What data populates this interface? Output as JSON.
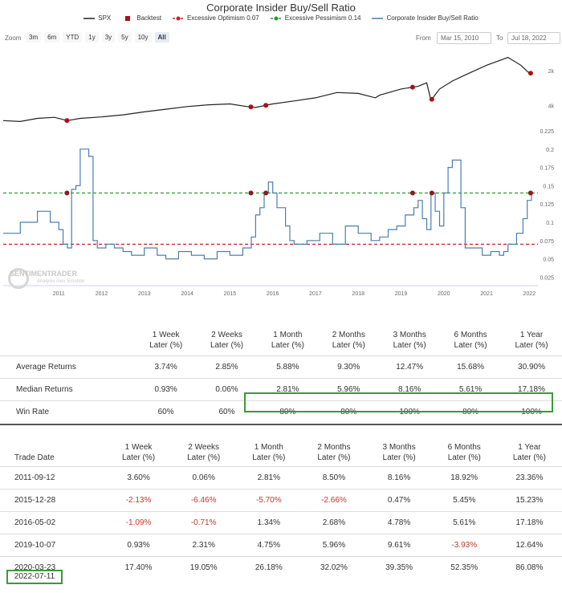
{
  "title": "Corporate Insider Buy/Sell Ratio",
  "legend": [
    {
      "name": "SPX",
      "color": "#222222",
      "symbol": "line"
    },
    {
      "name": "Backtest",
      "color": "#aa1111",
      "symbol": "square"
    },
    {
      "name": "Excessive Optimism 0.07",
      "color": "#cc2222",
      "symbol": "dash"
    },
    {
      "name": "Excessive Pessimism 0.14",
      "color": "#2a9a2a",
      "symbol": "dash"
    },
    {
      "name": "Corporate Insider Buy/Sell Ratio",
      "color": "#4a7fb0",
      "symbol": "line"
    }
  ],
  "toolbar": {
    "zoom_label": "Zoom",
    "zoom_buttons": [
      "3m",
      "6m",
      "YTD",
      "1y",
      "3y",
      "5y",
      "10y",
      "All"
    ],
    "active_zoom": "All",
    "from_label": "From",
    "from_value": "Mar 15, 2010",
    "to_label": "To",
    "to_value": "Jul 18, 2022"
  },
  "watermark": {
    "name": "SENTIMENTRADER",
    "tagline": "Analysis over Emotion"
  },
  "chart_data": [
    {
      "type": "line",
      "name": "SPX",
      "y_ticks": [
        "2k",
        "4k"
      ],
      "x": [
        2010.2,
        2010.6,
        2011.0,
        2011.4,
        2011.7,
        2012.0,
        2012.5,
        2013.0,
        2013.5,
        2014.0,
        2014.5,
        2015.0,
        2015.5,
        2015.9,
        2016.1,
        2016.5,
        2017.0,
        2017.5,
        2018.0,
        2018.5,
        2018.9,
        2019.0,
        2019.5,
        2019.9,
        2020.1,
        2020.2,
        2020.4,
        2020.7,
        2021.0,
        2021.5,
        2022.0,
        2022.3,
        2022.5
      ],
      "values": [
        1150,
        1100,
        1280,
        1340,
        1150,
        1280,
        1360,
        1480,
        1650,
        1800,
        1950,
        2050,
        2100,
        1950,
        1900,
        2100,
        2270,
        2450,
        2750,
        2700,
        2450,
        2600,
        2950,
        3100,
        3300,
        2300,
        2950,
        3400,
        3750,
        4300,
        4750,
        4300,
        3850
      ]
    },
    {
      "type": "line",
      "name": "Corporate Insider Buy/Sell Ratio",
      "xlabels": [
        "2011",
        "2012",
        "2013",
        "2014",
        "2015",
        "2016",
        "2017",
        "2018",
        "2019",
        "2020",
        "2021",
        "2022"
      ],
      "ylim": [
        0.02,
        0.225
      ],
      "y_ticks": [
        0.025,
        0.05,
        0.075,
        0.1,
        0.125,
        0.15,
        0.175,
        0.2,
        0.225
      ],
      "x": [
        2010.2,
        2010.5,
        2010.6,
        2010.9,
        2011.0,
        2011.2,
        2011.3,
        2011.5,
        2011.6,
        2011.7,
        2011.8,
        2011.9,
        2012.0,
        2012.2,
        2012.3,
        2012.4,
        2012.6,
        2012.8,
        2013.0,
        2013.2,
        2013.5,
        2013.8,
        2014.0,
        2014.3,
        2014.6,
        2014.9,
        2015.2,
        2015.5,
        2015.8,
        2016.0,
        2016.1,
        2016.2,
        2016.3,
        2016.4,
        2016.5,
        2016.6,
        2016.8,
        2016.9,
        2017.0,
        2017.3,
        2017.6,
        2017.9,
        2018.2,
        2018.5,
        2018.8,
        2019.0,
        2019.2,
        2019.4,
        2019.6,
        2019.8,
        2019.9,
        2020.0,
        2020.1,
        2020.2,
        2020.3,
        2020.4,
        2020.5,
        2020.6,
        2020.7,
        2020.8,
        2020.9,
        2021.0,
        2021.2,
        2021.4,
        2021.6,
        2021.8,
        2021.9,
        2022.0,
        2022.2,
        2022.35,
        2022.45,
        2022.55
      ],
      "values": [
        0.085,
        0.085,
        0.1,
        0.1,
        0.115,
        0.115,
        0.1,
        0.09,
        0.07,
        0.065,
        0.145,
        0.15,
        0.2,
        0.19,
        0.075,
        0.065,
        0.07,
        0.065,
        0.06,
        0.055,
        0.065,
        0.055,
        0.05,
        0.06,
        0.055,
        0.05,
        0.06,
        0.055,
        0.065,
        0.08,
        0.11,
        0.12,
        0.14,
        0.155,
        0.14,
        0.12,
        0.095,
        0.075,
        0.07,
        0.075,
        0.085,
        0.07,
        0.095,
        0.085,
        0.075,
        0.08,
        0.09,
        0.095,
        0.11,
        0.12,
        0.13,
        0.105,
        0.09,
        0.14,
        0.115,
        0.095,
        0.14,
        0.175,
        0.185,
        0.185,
        0.12,
        0.065,
        0.065,
        0.055,
        0.06,
        0.055,
        0.06,
        0.07,
        0.085,
        0.105,
        0.13,
        0.14
      ]
    }
  ],
  "backtest_dates": [
    2011.69,
    2015.99,
    2016.34,
    2019.77,
    2020.22,
    2022.53
  ],
  "reference_lines": {
    "optimism": 0.07,
    "pessimism": 0.14
  },
  "summary": {
    "columns": [
      "1 Week\nLater (%)",
      "2 Weeks\nLater (%)",
      "1 Month\nLater (%)",
      "2 Months\nLater (%)",
      "3 Months\nLater (%)",
      "6 Months\nLater (%)",
      "1 Year\nLater (%)"
    ],
    "rows": [
      {
        "label": "Average Returns",
        "values": [
          "3.74%",
          "2.85%",
          "5.88%",
          "9.30%",
          "12.47%",
          "15.68%",
          "30.90%"
        ]
      },
      {
        "label": "Median Returns",
        "values": [
          "0.93%",
          "0.06%",
          "2.81%",
          "5.96%",
          "8.16%",
          "5.61%",
          "17.18%"
        ]
      },
      {
        "label": "Win Rate",
        "values": [
          "60%",
          "60%",
          "80%",
          "80%",
          "100%",
          "80%",
          "100%"
        ]
      }
    ]
  },
  "trades": {
    "date_header": "Trade Date",
    "columns": [
      "1 Week\nLater (%)",
      "2 Weeks\nLater (%)",
      "1 Month\nLater (%)",
      "2 Months\nLater (%)",
      "3 Months\nLater (%)",
      "6 Months\nLater (%)",
      "1 Year\nLater (%)"
    ],
    "rows": [
      {
        "date": "2011-09-12",
        "values": [
          "3.60%",
          "0.06%",
          "2.81%",
          "8.50%",
          "8.16%",
          "18.92%",
          "23.36%"
        ]
      },
      {
        "date": "2015-12-28",
        "values": [
          "-2.13%",
          "-6.46%",
          "-5.70%",
          "-2.66%",
          "0.47%",
          "5.45%",
          "15.23%"
        ]
      },
      {
        "date": "2016-05-02",
        "values": [
          "-1.09%",
          "-0.71%",
          "1.34%",
          "2.68%",
          "4.78%",
          "5.61%",
          "17.18%"
        ]
      },
      {
        "date": "2019-10-07",
        "values": [
          "0.93%",
          "2.31%",
          "4.75%",
          "5.96%",
          "9.61%",
          "-3.93%",
          "12.64%"
        ]
      },
      {
        "date": "2020-03-23",
        "values": [
          "17.40%",
          "19.05%",
          "26.18%",
          "32.02%",
          "39.35%",
          "52.35%",
          "86.08%"
        ]
      }
    ],
    "latest_signal": "2022-07-11"
  }
}
